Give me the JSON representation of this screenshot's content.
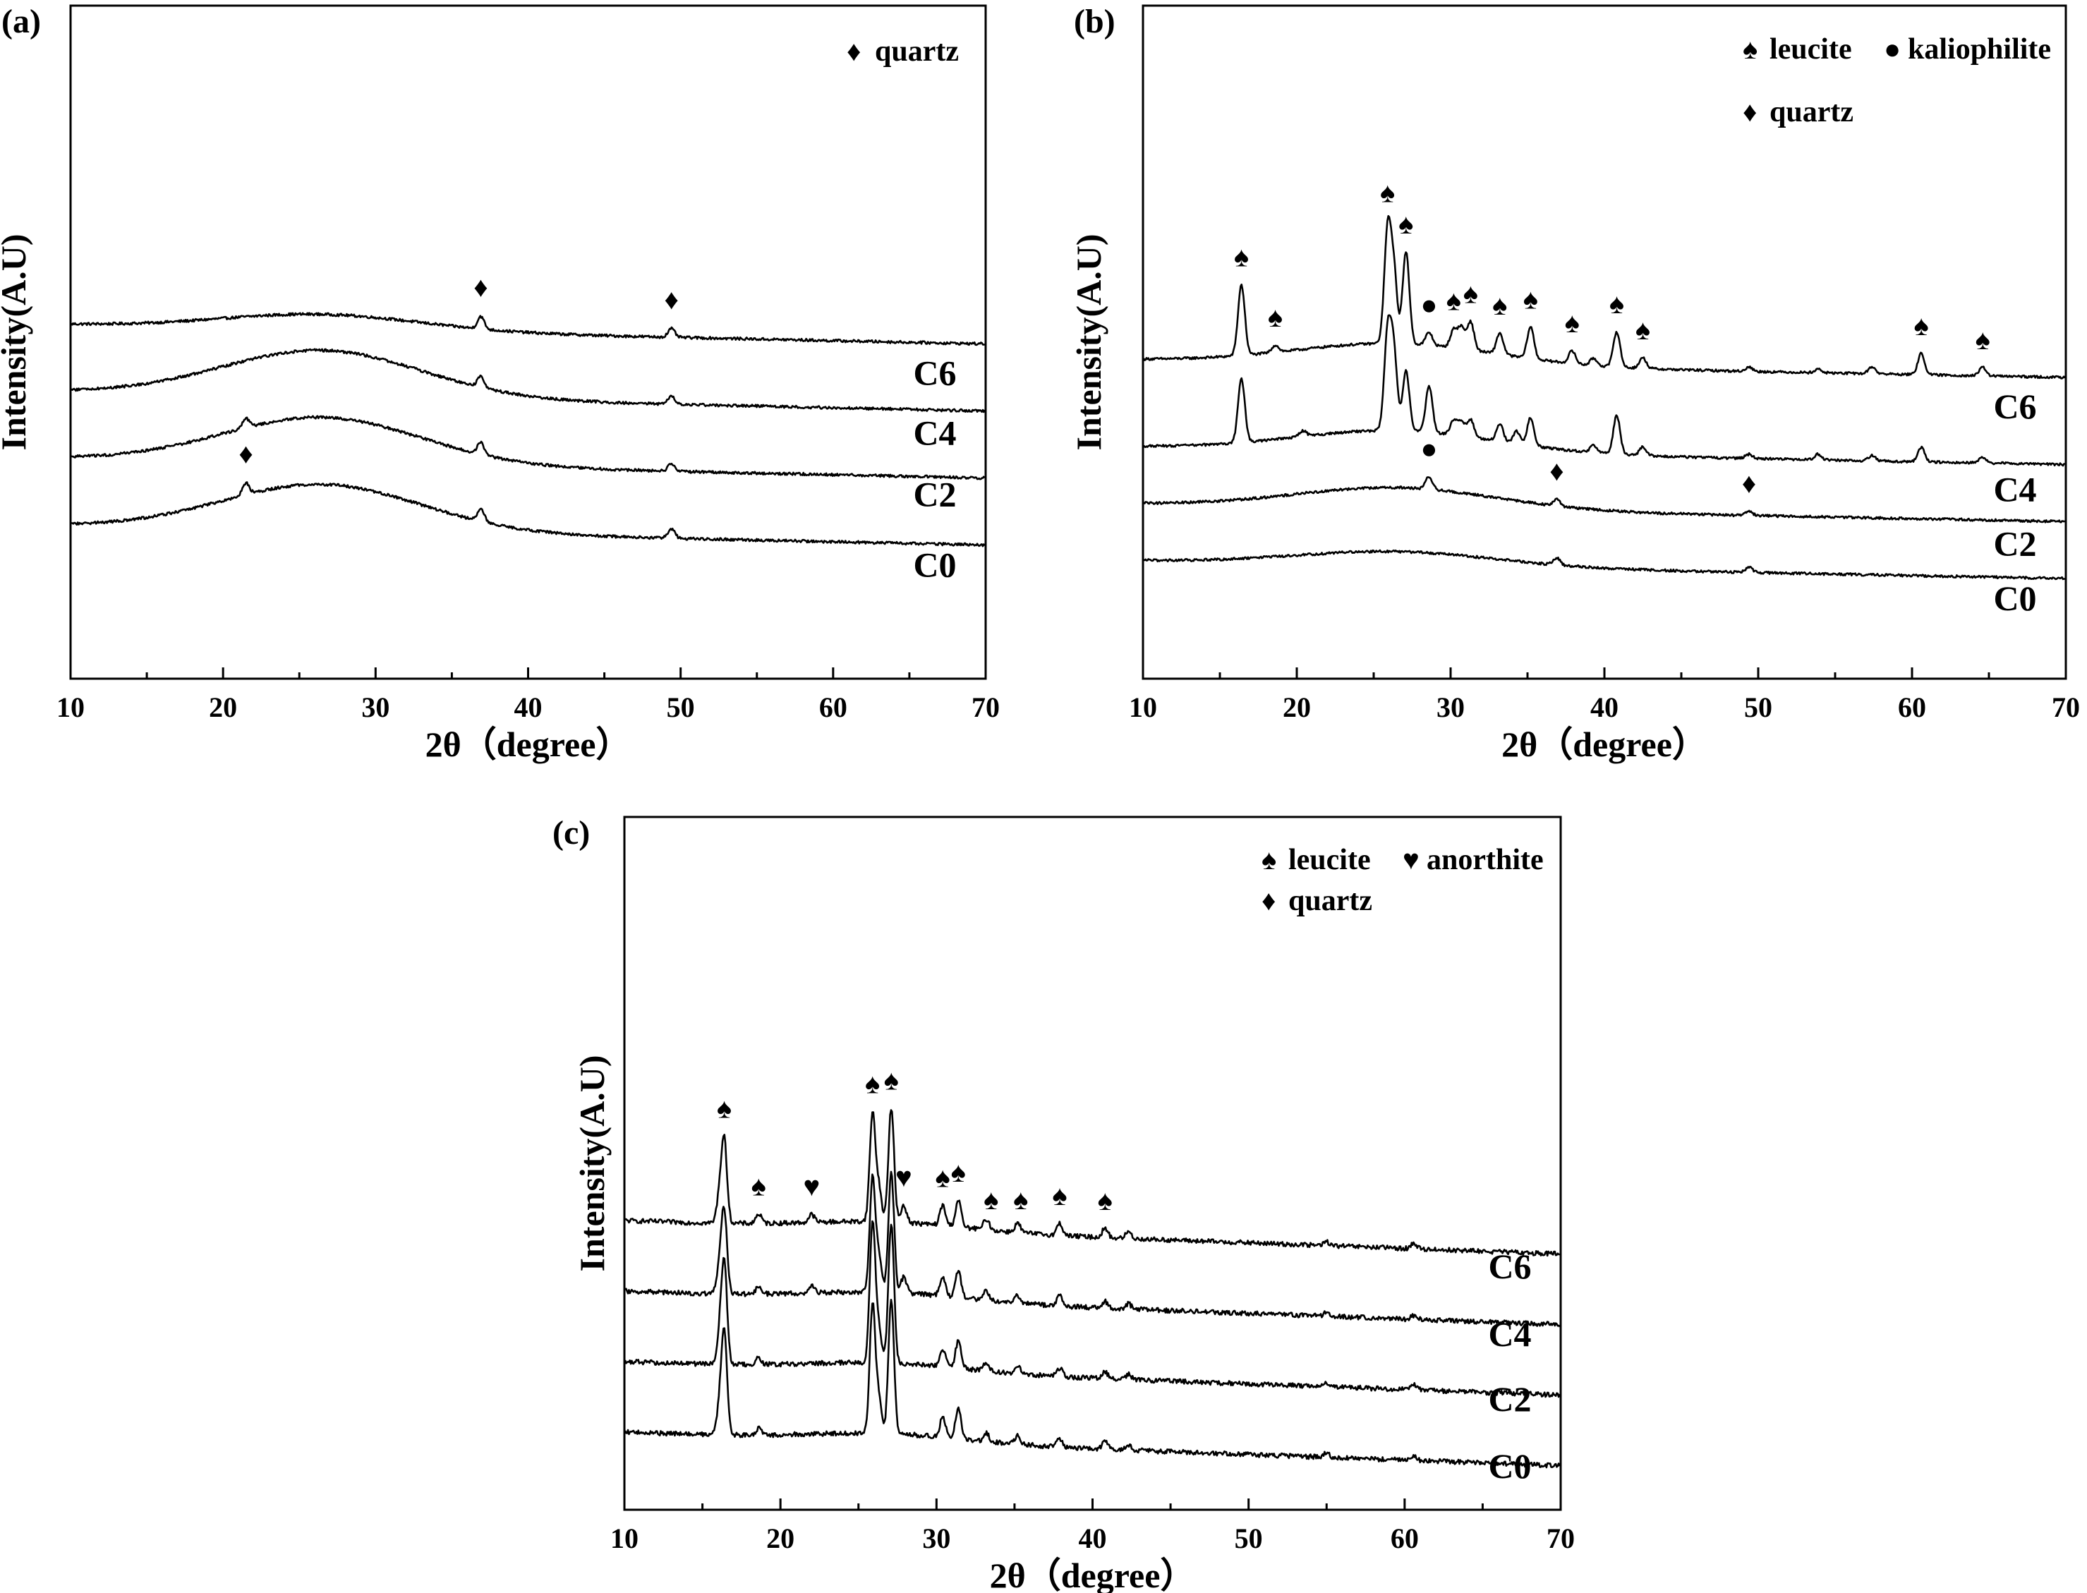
{
  "figure": {
    "charts_count": 3
  },
  "chart_data": [
    {
      "panel_label": "(a)",
      "type": "line",
      "xlabel": "2θ（degree）",
      "ylabel": "Intensity(A.U)",
      "xlim": [
        10,
        70
      ],
      "xticks": [
        10,
        20,
        30,
        40,
        50,
        60,
        70
      ],
      "y_ticks_shown": false,
      "legend": [
        {
          "symbol": "♦",
          "label": "quartz"
        }
      ],
      "series": [
        {
          "name": "C6",
          "offset": 3.0,
          "hump": {
            "center": 26.5,
            "amplitude": 0.2,
            "width": 6.5
          },
          "peaks": [
            {
              "x": 36.9,
              "h": 0.16,
              "w": 0.22
            },
            {
              "x": 49.4,
              "h": 0.11,
              "w": 0.22
            }
          ]
        },
        {
          "name": "C4",
          "offset": 2.0,
          "hump": {
            "center": 26.5,
            "amplitude": 0.6,
            "width": 6.5
          },
          "peaks": [
            {
              "x": 36.9,
              "h": 0.15,
              "w": 0.22
            },
            {
              "x": 49.4,
              "h": 0.1,
              "w": 0.22
            }
          ]
        },
        {
          "name": "C2",
          "offset": 1.0,
          "hump": {
            "center": 26.5,
            "amplitude": 0.6,
            "width": 6.5
          },
          "peaks": [
            {
              "x": 21.5,
              "h": 0.12,
              "w": 0.22
            },
            {
              "x": 36.9,
              "h": 0.15,
              "w": 0.22
            },
            {
              "x": 49.4,
              "h": 0.1,
              "w": 0.22
            }
          ]
        },
        {
          "name": "C0",
          "offset": 0.0,
          "hump": {
            "center": 26.5,
            "amplitude": 0.6,
            "width": 6.5
          },
          "peaks": [
            {
              "x": 21.5,
              "h": 0.15,
              "w": 0.22
            },
            {
              "x": 36.9,
              "h": 0.17,
              "w": 0.22
            },
            {
              "x": 49.4,
              "h": 0.12,
              "w": 0.22
            }
          ]
        }
      ],
      "markers": [
        {
          "symbol": "♦",
          "x": 36.9,
          "series": "C6"
        },
        {
          "symbol": "♦",
          "x": 49.4,
          "series": "C6"
        },
        {
          "symbol": "♦",
          "x": 21.5,
          "series": "C0"
        }
      ]
    },
    {
      "panel_label": "(b)",
      "type": "line",
      "xlabel": "2θ（degree）",
      "ylabel": "Intensity(A.U)",
      "xlim": [
        10,
        70
      ],
      "xticks": [
        10,
        20,
        30,
        40,
        50,
        60,
        70
      ],
      "y_ticks_shown": false,
      "legend": [
        {
          "symbol": "♠",
          "label": "leucite"
        },
        {
          "symbol": "●",
          "label": "kaliophilite"
        },
        {
          "symbol": "♦",
          "label": "quartz"
        }
      ],
      "series": [
        {
          "name": "C6",
          "offset": 3.0,
          "hump": {
            "center": 26.5,
            "amplitude": 0.3,
            "width": 6.5
          },
          "peaks": [
            {
              "x": 16.4,
              "h": 1.0,
              "w": 0.22
            },
            {
              "x": 18.6,
              "h": 0.1,
              "w": 0.22
            },
            {
              "x": 25.9,
              "h": 1.55,
              "w": 0.22
            },
            {
              "x": 26.3,
              "h": 1.0,
              "w": 0.22
            },
            {
              "x": 27.1,
              "h": 1.3,
              "w": 0.22
            },
            {
              "x": 28.6,
              "h": 0.18,
              "w": 0.22
            },
            {
              "x": 30.2,
              "h": 0.25,
              "w": 0.22
            },
            {
              "x": 30.7,
              "h": 0.3,
              "w": 0.22
            },
            {
              "x": 31.3,
              "h": 0.4,
              "w": 0.22
            },
            {
              "x": 33.2,
              "h": 0.3,
              "w": 0.22
            },
            {
              "x": 35.2,
              "h": 0.45,
              "w": 0.22
            },
            {
              "x": 37.9,
              "h": 0.18,
              "w": 0.22
            },
            {
              "x": 39.3,
              "h": 0.1,
              "w": 0.22
            },
            {
              "x": 40.8,
              "h": 0.5,
              "w": 0.22
            },
            {
              "x": 42.5,
              "h": 0.15,
              "w": 0.22
            },
            {
              "x": 49.4,
              "h": 0.06,
              "w": 0.22
            },
            {
              "x": 53.9,
              "h": 0.05,
              "w": 0.22
            },
            {
              "x": 57.4,
              "h": 0.1,
              "w": 0.22
            },
            {
              "x": 60.6,
              "h": 0.3,
              "w": 0.22
            },
            {
              "x": 64.6,
              "h": 0.12,
              "w": 0.22
            }
          ]
        },
        {
          "name": "C4",
          "offset": 1.7,
          "hump": {
            "center": 26.5,
            "amplitude": 0.3,
            "width": 6.5
          },
          "peaks": [
            {
              "x": 16.4,
              "h": 0.9,
              "w": 0.22
            },
            {
              "x": 20.4,
              "h": 0.08,
              "w": 0.22
            },
            {
              "x": 25.9,
              "h": 1.35,
              "w": 0.22
            },
            {
              "x": 26.3,
              "h": 1.1,
              "w": 0.22
            },
            {
              "x": 27.1,
              "h": 0.85,
              "w": 0.22
            },
            {
              "x": 28.6,
              "h": 0.65,
              "w": 0.22
            },
            {
              "x": 30.2,
              "h": 0.2,
              "w": 0.22
            },
            {
              "x": 30.7,
              "h": 0.2,
              "w": 0.22
            },
            {
              "x": 31.3,
              "h": 0.25,
              "w": 0.22
            },
            {
              "x": 33.2,
              "h": 0.25,
              "w": 0.22
            },
            {
              "x": 34.3,
              "h": 0.18,
              "w": 0.22
            },
            {
              "x": 35.2,
              "h": 0.4,
              "w": 0.22
            },
            {
              "x": 39.3,
              "h": 0.1,
              "w": 0.22
            },
            {
              "x": 40.8,
              "h": 0.55,
              "w": 0.22
            },
            {
              "x": 42.5,
              "h": 0.12,
              "w": 0.22
            },
            {
              "x": 49.4,
              "h": 0.06,
              "w": 0.22
            },
            {
              "x": 53.9,
              "h": 0.08,
              "w": 0.22
            },
            {
              "x": 57.4,
              "h": 0.08,
              "w": 0.22
            },
            {
              "x": 60.6,
              "h": 0.2,
              "w": 0.22
            },
            {
              "x": 64.6,
              "h": 0.08,
              "w": 0.22
            }
          ]
        },
        {
          "name": "C2",
          "offset": 0.85,
          "hump": {
            "center": 26.5,
            "amplitude": 0.3,
            "width": 6.5
          },
          "peaks": [
            {
              "x": 28.6,
              "h": 0.18,
              "w": 0.22
            },
            {
              "x": 36.9,
              "h": 0.1,
              "w": 0.22
            },
            {
              "x": 49.4,
              "h": 0.06,
              "w": 0.22
            }
          ]
        },
        {
          "name": "C0",
          "offset": 0.0,
          "hump": {
            "center": 26.5,
            "amplitude": 0.2,
            "width": 6.5
          },
          "peaks": [
            {
              "x": 36.9,
              "h": 0.1,
              "w": 0.22
            },
            {
              "x": 49.4,
              "h": 0.07,
              "w": 0.22
            }
          ]
        }
      ],
      "markers": [
        {
          "symbol": "♠",
          "x": 16.4,
          "series": "C6"
        },
        {
          "symbol": "♠",
          "x": 18.6,
          "series": "C6"
        },
        {
          "symbol": "♠",
          "x": 25.9,
          "series": "C6"
        },
        {
          "symbol": "♠",
          "x": 27.1,
          "series": "C6"
        },
        {
          "symbol": "●",
          "x": 28.6,
          "series": "C6"
        },
        {
          "symbol": "♠",
          "x": 30.2,
          "series": "C6"
        },
        {
          "symbol": "♠",
          "x": 31.3,
          "series": "C6"
        },
        {
          "symbol": "♠",
          "x": 33.2,
          "series": "C6"
        },
        {
          "symbol": "♠",
          "x": 35.2,
          "series": "C6"
        },
        {
          "symbol": "♠",
          "x": 37.9,
          "series": "C6"
        },
        {
          "symbol": "♠",
          "x": 40.8,
          "series": "C6"
        },
        {
          "symbol": "♠",
          "x": 42.5,
          "series": "C6"
        },
        {
          "symbol": "♠",
          "x": 60.6,
          "series": "C6"
        },
        {
          "symbol": "♠",
          "x": 64.6,
          "series": "C6"
        },
        {
          "symbol": "●",
          "x": 28.6,
          "series": "C2"
        },
        {
          "symbol": "♦",
          "x": 36.9,
          "series": "C2"
        },
        {
          "symbol": "♦",
          "x": 49.4,
          "series": "C2"
        }
      ]
    },
    {
      "panel_label": "(c)",
      "type": "line",
      "xlabel": "2θ（degree）",
      "ylabel": "Intensity(A.U)",
      "xlim": [
        10,
        70
      ],
      "xticks": [
        10,
        20,
        30,
        40,
        50,
        60,
        70
      ],
      "y_ticks_shown": false,
      "legend": [
        {
          "symbol": "♠",
          "label": "leucite"
        },
        {
          "symbol": "♥",
          "label": "anorthite"
        },
        {
          "symbol": "♦",
          "label": "quartz"
        }
      ],
      "series": [
        {
          "name": "C6",
          "offset": 3.0,
          "hump": {
            "center": 27.0,
            "amplitude": 0.06,
            "width": 5.0
          },
          "peaks": [
            {
              "x": 16.1,
              "h": 0.2,
              "w": 0.18
            },
            {
              "x": 16.4,
              "h": 0.6,
              "w": 0.18
            },
            {
              "x": 18.6,
              "h": 0.07,
              "w": 0.18
            },
            {
              "x": 22.0,
              "h": 0.06,
              "w": 0.18
            },
            {
              "x": 25.9,
              "h": 0.8,
              "w": 0.18
            },
            {
              "x": 26.3,
              "h": 0.25,
              "w": 0.18
            },
            {
              "x": 27.1,
              "h": 0.85,
              "w": 0.18
            },
            {
              "x": 27.9,
              "h": 0.13,
              "w": 0.18
            },
            {
              "x": 30.4,
              "h": 0.15,
              "w": 0.18
            },
            {
              "x": 31.4,
              "h": 0.2,
              "w": 0.18
            },
            {
              "x": 33.2,
              "h": 0.08,
              "w": 0.18
            },
            {
              "x": 35.2,
              "h": 0.07,
              "w": 0.18
            },
            {
              "x": 37.9,
              "h": 0.09,
              "w": 0.18
            },
            {
              "x": 40.8,
              "h": 0.07,
              "w": 0.18
            },
            {
              "x": 42.3,
              "h": 0.05,
              "w": 0.18
            },
            {
              "x": 55.0,
              "h": 0.03,
              "w": 0.18
            },
            {
              "x": 60.6,
              "h": 0.04,
              "w": 0.18
            }
          ]
        },
        {
          "name": "C4",
          "offset": 2.0,
          "hump": {
            "center": 27.0,
            "amplitude": 0.06,
            "width": 5.0
          },
          "peaks": [
            {
              "x": 16.1,
              "h": 0.2,
              "w": 0.18
            },
            {
              "x": 16.4,
              "h": 0.6,
              "w": 0.18
            },
            {
              "x": 18.6,
              "h": 0.05,
              "w": 0.18
            },
            {
              "x": 22.0,
              "h": 0.05,
              "w": 0.18
            },
            {
              "x": 25.9,
              "h": 0.85,
              "w": 0.18
            },
            {
              "x": 26.3,
              "h": 0.25,
              "w": 0.18
            },
            {
              "x": 27.1,
              "h": 0.9,
              "w": 0.18
            },
            {
              "x": 27.9,
              "h": 0.12,
              "w": 0.18
            },
            {
              "x": 30.4,
              "h": 0.15,
              "w": 0.18
            },
            {
              "x": 31.4,
              "h": 0.2,
              "w": 0.18
            },
            {
              "x": 33.2,
              "h": 0.07,
              "w": 0.18
            },
            {
              "x": 35.2,
              "h": 0.06,
              "w": 0.18
            },
            {
              "x": 37.9,
              "h": 0.08,
              "w": 0.18
            },
            {
              "x": 40.8,
              "h": 0.05,
              "w": 0.18
            },
            {
              "x": 42.3,
              "h": 0.04,
              "w": 0.18
            },
            {
              "x": 55.0,
              "h": 0.03,
              "w": 0.18
            },
            {
              "x": 60.6,
              "h": 0.03,
              "w": 0.18
            }
          ]
        },
        {
          "name": "C2",
          "offset": 1.0,
          "hump": {
            "center": 27.0,
            "amplitude": 0.06,
            "width": 5.0
          },
          "peaks": [
            {
              "x": 16.1,
              "h": 0.2,
              "w": 0.18
            },
            {
              "x": 16.4,
              "h": 0.75,
              "w": 0.18
            },
            {
              "x": 18.6,
              "h": 0.05,
              "w": 0.18
            },
            {
              "x": 25.9,
              "h": 1.05,
              "w": 0.18
            },
            {
              "x": 26.3,
              "h": 0.25,
              "w": 0.18
            },
            {
              "x": 27.1,
              "h": 1.05,
              "w": 0.18
            },
            {
              "x": 30.4,
              "h": 0.13,
              "w": 0.18
            },
            {
              "x": 31.4,
              "h": 0.2,
              "w": 0.18
            },
            {
              "x": 33.2,
              "h": 0.06,
              "w": 0.18
            },
            {
              "x": 35.2,
              "h": 0.06,
              "w": 0.18
            },
            {
              "x": 37.9,
              "h": 0.06,
              "w": 0.18
            },
            {
              "x": 40.8,
              "h": 0.05,
              "w": 0.18
            },
            {
              "x": 42.3,
              "h": 0.04,
              "w": 0.18
            },
            {
              "x": 55.0,
              "h": 0.03,
              "w": 0.18
            },
            {
              "x": 60.6,
              "h": 0.04,
              "w": 0.18
            }
          ]
        },
        {
          "name": "C0",
          "offset": 0.0,
          "hump": {
            "center": 27.0,
            "amplitude": 0.06,
            "width": 5.0
          },
          "peaks": [
            {
              "x": 16.1,
              "h": 0.2,
              "w": 0.18
            },
            {
              "x": 16.4,
              "h": 0.75,
              "w": 0.18
            },
            {
              "x": 18.6,
              "h": 0.05,
              "w": 0.18
            },
            {
              "x": 25.9,
              "h": 0.95,
              "w": 0.18
            },
            {
              "x": 26.3,
              "h": 0.25,
              "w": 0.18
            },
            {
              "x": 27.1,
              "h": 1.0,
              "w": 0.18
            },
            {
              "x": 30.4,
              "h": 0.15,
              "w": 0.18
            },
            {
              "x": 31.4,
              "h": 0.22,
              "w": 0.18
            },
            {
              "x": 33.2,
              "h": 0.06,
              "w": 0.18
            },
            {
              "x": 35.2,
              "h": 0.06,
              "w": 0.18
            },
            {
              "x": 37.9,
              "h": 0.06,
              "w": 0.18
            },
            {
              "x": 40.8,
              "h": 0.06,
              "w": 0.18
            },
            {
              "x": 42.3,
              "h": 0.04,
              "w": 0.18
            },
            {
              "x": 55.0,
              "h": 0.03,
              "w": 0.18
            },
            {
              "x": 60.6,
              "h": 0.04,
              "w": 0.18
            }
          ]
        }
      ],
      "markers": [
        {
          "symbol": "♠",
          "x": 16.4,
          "series": "C6"
        },
        {
          "symbol": "♠",
          "x": 18.6,
          "series": "C6"
        },
        {
          "symbol": "♥",
          "x": 22.0,
          "series": "C6"
        },
        {
          "symbol": "♠",
          "x": 25.9,
          "series": "C6"
        },
        {
          "symbol": "♠",
          "x": 27.1,
          "series": "C6"
        },
        {
          "symbol": "♥",
          "x": 27.9,
          "series": "C6"
        },
        {
          "symbol": "♠",
          "x": 30.4,
          "series": "C6"
        },
        {
          "symbol": "♠",
          "x": 31.4,
          "series": "C6"
        },
        {
          "symbol": "♠",
          "x": 33.5,
          "series": "C6"
        },
        {
          "symbol": "♠",
          "x": 35.4,
          "series": "C6"
        },
        {
          "symbol": "♠",
          "x": 37.9,
          "series": "C6"
        },
        {
          "symbol": "♠",
          "x": 40.8,
          "series": "C6"
        }
      ]
    }
  ]
}
